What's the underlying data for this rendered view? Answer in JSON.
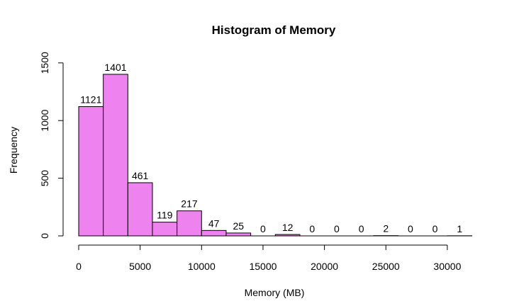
{
  "chart_data": {
    "type": "bar",
    "title": "Histogram of Memory",
    "xlabel": "Memory (MB)",
    "ylabel": "Frequency",
    "bin_edges": [
      0,
      2000,
      4000,
      6000,
      8000,
      10000,
      12000,
      14000,
      16000,
      18000,
      20000,
      22000,
      24000,
      26000,
      28000,
      30000,
      32000
    ],
    "values": [
      1121,
      1401,
      461,
      119,
      217,
      47,
      25,
      0,
      12,
      0,
      0,
      0,
      2,
      0,
      0,
      1
    ],
    "xticks": [
      0,
      5000,
      10000,
      15000,
      20000,
      25000,
      30000
    ],
    "xtick_labels": [
      "0",
      "5000",
      "10000",
      "15000",
      "20000",
      "25000",
      "30000"
    ],
    "yticks": [
      0,
      500,
      1000,
      1500
    ],
    "ytick_labels": [
      "0",
      "500",
      "1000",
      "1500"
    ],
    "xlim": [
      0,
      32000
    ],
    "ylim": [
      0,
      1500
    ],
    "bar_color": "#ee82ee",
    "grid": false
  }
}
